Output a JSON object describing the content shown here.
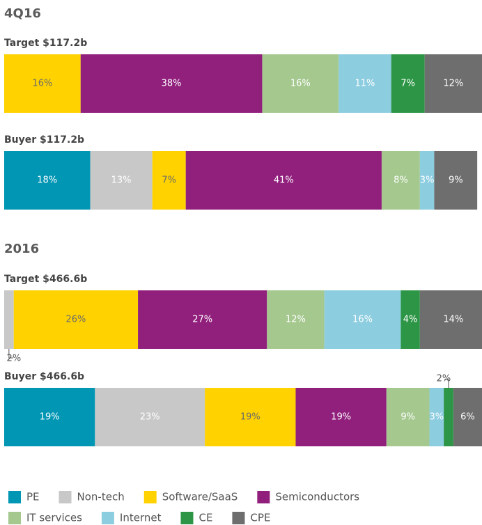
{
  "chart_data": {
    "type": "stacked_bar",
    "groups": [
      "4Q16",
      "2016"
    ],
    "categories": [
      "Target $117.2b",
      "Buyer $117.2b",
      "Target $466.6b",
      "Buyer $466.6b"
    ],
    "xlim": [
      0,
      100
    ],
    "series": [
      {
        "name": "PE",
        "color": "#0096b4",
        "values": [
          null,
          18,
          null,
          19
        ],
        "value_labels": [
          null,
          "18%",
          null,
          "19%"
        ]
      },
      {
        "name": "Non-tech",
        "color": "#c8c8c8",
        "values": [
          null,
          13,
          2,
          23
        ],
        "value_labels": [
          null,
          "13%",
          "2%",
          "23%"
        ]
      },
      {
        "name": "Software/SaaS",
        "color": "#ffd200",
        "values": [
          16,
          7,
          26,
          19
        ],
        "value_labels": [
          "16%",
          "7%",
          "26%",
          "19%"
        ]
      },
      {
        "name": "Semiconductors",
        "color": "#91207d",
        "values": [
          38,
          41,
          27,
          19
        ],
        "value_labels": [
          "38%",
          "41%",
          "27%",
          "19%"
        ]
      },
      {
        "name": "IT services",
        "color": "#a5c88f",
        "values": [
          16,
          8,
          12,
          9
        ],
        "value_labels": [
          "16%",
          "8%",
          "12%",
          "9%"
        ]
      },
      {
        "name": "Internet",
        "color": "#8ccde0",
        "values": [
          11,
          3,
          16,
          3
        ],
        "value_labels": [
          "11%",
          "3%",
          "16%",
          "3%"
        ]
      },
      {
        "name": "CE",
        "color": "#2d9646",
        "values": [
          7,
          null,
          4,
          2
        ],
        "value_labels": [
          "7%",
          null,
          "4%",
          "2%"
        ]
      },
      {
        "name": "CPE",
        "color": "#6e6e6e",
        "values": [
          12,
          9,
          14,
          6
        ],
        "value_labels": [
          "12%",
          "9%",
          "14%",
          "6%"
        ]
      }
    ]
  }
}
